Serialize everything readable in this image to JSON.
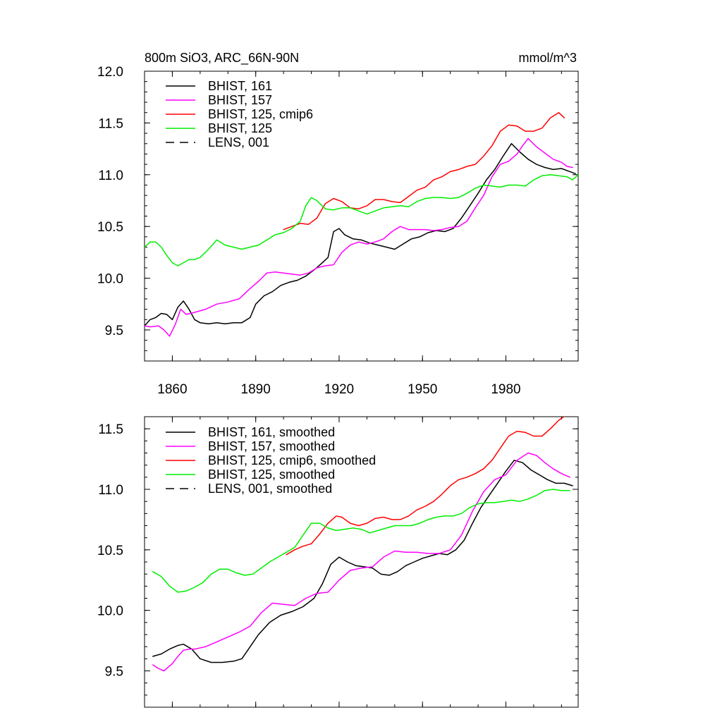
{
  "chart_data": [
    {
      "type": "line",
      "title": "800m SiO3, ARC_66N-90N",
      "units": "mmol/m^3",
      "xlim": [
        1850,
        2006
      ],
      "ylim": [
        9.2,
        12.0
      ],
      "yticks": [
        9.5,
        10.0,
        10.5,
        11.0,
        11.5,
        12.0
      ],
      "ytick_labels": [
        "9.5",
        "10.0",
        "10.5",
        "11.0",
        "11.5",
        "12.0"
      ],
      "xticks": [
        1860,
        1890,
        1920,
        1950,
        1980
      ],
      "xtick_labels": [
        "1860",
        "1890",
        "1920",
        "1950",
        "1980"
      ],
      "legend_position": "top-left",
      "series": [
        {
          "name": "BHIST, 161",
          "color": "#000000",
          "dash": "solid",
          "x": [
            1850,
            1852,
            1854,
            1856,
            1858,
            1860,
            1862,
            1864,
            1866,
            1868,
            1870,
            1873,
            1876,
            1879,
            1882,
            1885,
            1888,
            1890,
            1893,
            1896,
            1899,
            1902,
            1905,
            1908,
            1911,
            1914,
            1916,
            1918,
            1920,
            1922,
            1925,
            1928,
            1931,
            1934,
            1937,
            1940,
            1943,
            1946,
            1949,
            1952,
            1955,
            1958,
            1961,
            1964,
            1967,
            1970,
            1973,
            1976,
            1979,
            1982,
            1985,
            1988,
            1991,
            1994,
            1997,
            2000,
            2003,
            2005
          ],
          "y": [
            9.54,
            9.6,
            9.62,
            9.66,
            9.65,
            9.6,
            9.72,
            9.78,
            9.7,
            9.6,
            9.57,
            9.56,
            9.57,
            9.56,
            9.57,
            9.57,
            9.62,
            9.75,
            9.83,
            9.87,
            9.93,
            9.96,
            9.98,
            10.02,
            10.08,
            10.15,
            10.2,
            10.45,
            10.48,
            10.42,
            10.38,
            10.37,
            10.34,
            10.32,
            10.3,
            10.28,
            10.33,
            10.38,
            10.4,
            10.44,
            10.46,
            10.45,
            10.48,
            10.58,
            10.7,
            10.82,
            10.95,
            11.05,
            11.18,
            11.3,
            11.22,
            11.15,
            11.1,
            11.07,
            11.05,
            11.06,
            11.03,
            11.01
          ]
        },
        {
          "name": "BHIST, 157",
          "color": "#ff00ff",
          "dash": "solid",
          "x": [
            1850,
            1852,
            1855,
            1857,
            1859,
            1861,
            1863,
            1865,
            1868,
            1872,
            1876,
            1880,
            1884,
            1888,
            1891,
            1894,
            1897,
            1900,
            1903,
            1906,
            1909,
            1912,
            1915,
            1918,
            1921,
            1924,
            1927,
            1930,
            1933,
            1936,
            1939,
            1942,
            1945,
            1948,
            1951,
            1954,
            1957,
            1960,
            1963,
            1966,
            1969,
            1972,
            1975,
            1978,
            1981,
            1984,
            1986,
            1988,
            1991,
            1994,
            1997,
            2000,
            2002,
            2004
          ],
          "y": [
            9.54,
            9.53,
            9.54,
            9.5,
            9.44,
            9.55,
            9.7,
            9.65,
            9.67,
            9.7,
            9.75,
            9.77,
            9.8,
            9.9,
            9.97,
            10.05,
            10.06,
            10.05,
            10.04,
            10.03,
            10.05,
            10.1,
            10.12,
            10.13,
            10.25,
            10.32,
            10.35,
            10.33,
            10.35,
            10.38,
            10.45,
            10.5,
            10.47,
            10.47,
            10.47,
            10.46,
            10.47,
            10.49,
            10.5,
            10.55,
            10.68,
            10.8,
            10.98,
            11.1,
            11.13,
            11.2,
            11.28,
            11.35,
            11.27,
            11.21,
            11.15,
            11.12,
            11.08,
            11.07
          ]
        },
        {
          "name": "BHIST, 125, cmip6",
          "color": "#ff0000",
          "dash": "solid",
          "x": [
            1900,
            1903,
            1906,
            1909,
            1912,
            1915,
            1918,
            1921,
            1924,
            1927,
            1930,
            1933,
            1936,
            1939,
            1942,
            1945,
            1948,
            1951,
            1954,
            1957,
            1960,
            1963,
            1966,
            1969,
            1972,
            1975,
            1978,
            1981,
            1984,
            1987,
            1990,
            1993,
            1996,
            1999,
            2001
          ],
          "y": [
            10.47,
            10.5,
            10.53,
            10.52,
            10.58,
            10.72,
            10.77,
            10.74,
            10.68,
            10.67,
            10.7,
            10.76,
            10.76,
            10.74,
            10.73,
            10.79,
            10.85,
            10.88,
            10.95,
            10.98,
            11.03,
            11.05,
            11.08,
            11.1,
            11.18,
            11.28,
            11.42,
            11.48,
            11.47,
            11.42,
            11.42,
            11.45,
            11.55,
            11.6,
            11.55
          ]
        },
        {
          "name": "BHIST, 125",
          "color": "#00ee00",
          "dash": "solid",
          "x": [
            1850,
            1852,
            1854,
            1856,
            1858,
            1860,
            1862,
            1864,
            1866,
            1868,
            1870,
            1873,
            1876,
            1879,
            1882,
            1885,
            1888,
            1891,
            1894,
            1897,
            1900,
            1903,
            1906,
            1908,
            1910,
            1912,
            1915,
            1918,
            1921,
            1924,
            1927,
            1930,
            1933,
            1936,
            1939,
            1942,
            1945,
            1948,
            1951,
            1954,
            1957,
            1960,
            1963,
            1966,
            1969,
            1972,
            1975,
            1978,
            1981,
            1984,
            1987,
            1990,
            1993,
            1996,
            1999,
            2002,
            2004,
            2006
          ],
          "y": [
            10.3,
            10.35,
            10.35,
            10.3,
            10.22,
            10.15,
            10.12,
            10.15,
            10.18,
            10.18,
            10.2,
            10.28,
            10.37,
            10.32,
            10.3,
            10.28,
            10.3,
            10.32,
            10.37,
            10.42,
            10.44,
            10.48,
            10.55,
            10.7,
            10.78,
            10.75,
            10.67,
            10.66,
            10.68,
            10.68,
            10.65,
            10.62,
            10.65,
            10.68,
            10.69,
            10.7,
            10.69,
            10.74,
            10.77,
            10.78,
            10.78,
            10.77,
            10.78,
            10.82,
            10.87,
            10.9,
            10.89,
            10.88,
            10.9,
            10.9,
            10.89,
            10.95,
            10.99,
            11.0,
            10.99,
            10.98,
            10.95,
            11.0
          ]
        },
        {
          "name": "LENS, 001",
          "color": "#000000",
          "dash": "dashed",
          "x": [],
          "y": []
        }
      ]
    },
    {
      "type": "line",
      "title": "",
      "xlim": [
        1850,
        2006
      ],
      "ylim": [
        9.2,
        11.6
      ],
      "yticks": [
        9.5,
        10.0,
        10.5,
        11.0,
        11.5
      ],
      "ytick_labels": [
        "9.5",
        "10.0",
        "10.5",
        "11.0",
        "11.5"
      ],
      "xticks": [
        1860,
        1890,
        1920,
        1950,
        1980
      ],
      "xtick_labels": [],
      "legend_position": "top-left",
      "series": [
        {
          "name": "BHIST, 161, smoothed",
          "color": "#000000",
          "dash": "solid",
          "x": [
            1853,
            1856,
            1859,
            1862,
            1864,
            1867,
            1870,
            1874,
            1878,
            1882,
            1885,
            1888,
            1891,
            1895,
            1899,
            1903,
            1907,
            1911,
            1914,
            1917,
            1920,
            1923,
            1926,
            1929,
            1932,
            1935,
            1938,
            1941,
            1944,
            1947,
            1950,
            1953,
            1956,
            1959,
            1962,
            1965,
            1968,
            1971,
            1974,
            1977,
            1980,
            1983,
            1986,
            1989,
            1992,
            1995,
            1998,
            2001,
            2004
          ],
          "y": [
            9.62,
            9.64,
            9.68,
            9.71,
            9.72,
            9.68,
            9.6,
            9.57,
            9.57,
            9.58,
            9.6,
            9.7,
            9.8,
            9.9,
            9.96,
            9.99,
            10.03,
            10.1,
            10.22,
            10.38,
            10.44,
            10.4,
            10.37,
            10.36,
            10.35,
            10.3,
            10.29,
            10.32,
            10.37,
            10.4,
            10.43,
            10.45,
            10.47,
            10.46,
            10.5,
            10.58,
            10.72,
            10.85,
            10.95,
            11.05,
            11.15,
            11.24,
            11.22,
            11.16,
            11.12,
            11.08,
            11.05,
            11.05,
            11.03
          ]
        },
        {
          "name": "BHIST, 157, smoothed",
          "color": "#ff00ff",
          "dash": "solid",
          "x": [
            1853,
            1855,
            1857,
            1860,
            1862,
            1864,
            1866,
            1868,
            1872,
            1876,
            1880,
            1884,
            1888,
            1892,
            1896,
            1900,
            1904,
            1908,
            1912,
            1916,
            1920,
            1924,
            1928,
            1932,
            1936,
            1940,
            1944,
            1948,
            1952,
            1956,
            1960,
            1964,
            1968,
            1972,
            1976,
            1980,
            1984,
            1988,
            1991,
            1994,
            1997,
            2000,
            2003
          ],
          "y": [
            9.55,
            9.52,
            9.5,
            9.56,
            9.62,
            9.67,
            9.68,
            9.68,
            9.7,
            9.74,
            9.78,
            9.82,
            9.87,
            9.98,
            10.06,
            10.05,
            10.04,
            10.1,
            10.14,
            10.15,
            10.25,
            10.33,
            10.35,
            10.36,
            10.44,
            10.49,
            10.48,
            10.48,
            10.47,
            10.47,
            10.5,
            10.62,
            10.82,
            10.98,
            11.08,
            11.12,
            11.24,
            11.3,
            11.28,
            11.22,
            11.17,
            11.13,
            11.1
          ]
        },
        {
          "name": "BHIST, 125, cmip6, smoothed",
          "color": "#ff0000",
          "dash": "solid",
          "x": [
            1901,
            1904,
            1907,
            1910,
            1913,
            1916,
            1919,
            1921,
            1924,
            1927,
            1930,
            1933,
            1936,
            1939,
            1942,
            1945,
            1948,
            1951,
            1954,
            1957,
            1960,
            1963,
            1966,
            1969,
            1972,
            1975,
            1978,
            1981,
            1984,
            1987,
            1990,
            1993,
            1996,
            1999,
            2002
          ],
          "y": [
            10.46,
            10.5,
            10.53,
            10.55,
            10.63,
            10.72,
            10.78,
            10.77,
            10.72,
            10.7,
            10.72,
            10.76,
            10.77,
            10.75,
            10.75,
            10.78,
            10.83,
            10.86,
            10.9,
            10.96,
            11.03,
            11.08,
            11.1,
            11.13,
            11.17,
            11.24,
            11.34,
            11.44,
            11.48,
            11.47,
            11.44,
            11.44,
            11.5,
            11.57,
            11.62
          ]
        },
        {
          "name": "BHIST, 125, smoothed",
          "color": "#00ee00",
          "dash": "solid",
          "x": [
            1853,
            1856,
            1859,
            1862,
            1865,
            1868,
            1871,
            1874,
            1877,
            1880,
            1883,
            1886,
            1889,
            1892,
            1895,
            1898,
            1901,
            1904,
            1907,
            1910,
            1913,
            1916,
            1919,
            1922,
            1925,
            1928,
            1931,
            1934,
            1937,
            1940,
            1943,
            1946,
            1949,
            1952,
            1955,
            1958,
            1961,
            1964,
            1967,
            1970,
            1973,
            1976,
            1979,
            1982,
            1985,
            1988,
            1991,
            1994,
            1997,
            2000,
            2003
          ],
          "y": [
            10.32,
            10.28,
            10.2,
            10.15,
            10.16,
            10.19,
            10.23,
            10.3,
            10.34,
            10.34,
            10.31,
            10.29,
            10.3,
            10.35,
            10.4,
            10.44,
            10.48,
            10.52,
            10.62,
            10.72,
            10.72,
            10.68,
            10.66,
            10.67,
            10.68,
            10.67,
            10.64,
            10.66,
            10.68,
            10.7,
            10.7,
            10.7,
            10.72,
            10.75,
            10.77,
            10.78,
            10.78,
            10.8,
            10.85,
            10.88,
            10.89,
            10.89,
            10.9,
            10.91,
            10.9,
            10.92,
            10.95,
            10.99,
            11.0,
            10.99,
            10.99
          ]
        },
        {
          "name": "LENS, 001, smoothed",
          "color": "#000000",
          "dash": "dashed",
          "x": [],
          "y": []
        }
      ]
    }
  ]
}
